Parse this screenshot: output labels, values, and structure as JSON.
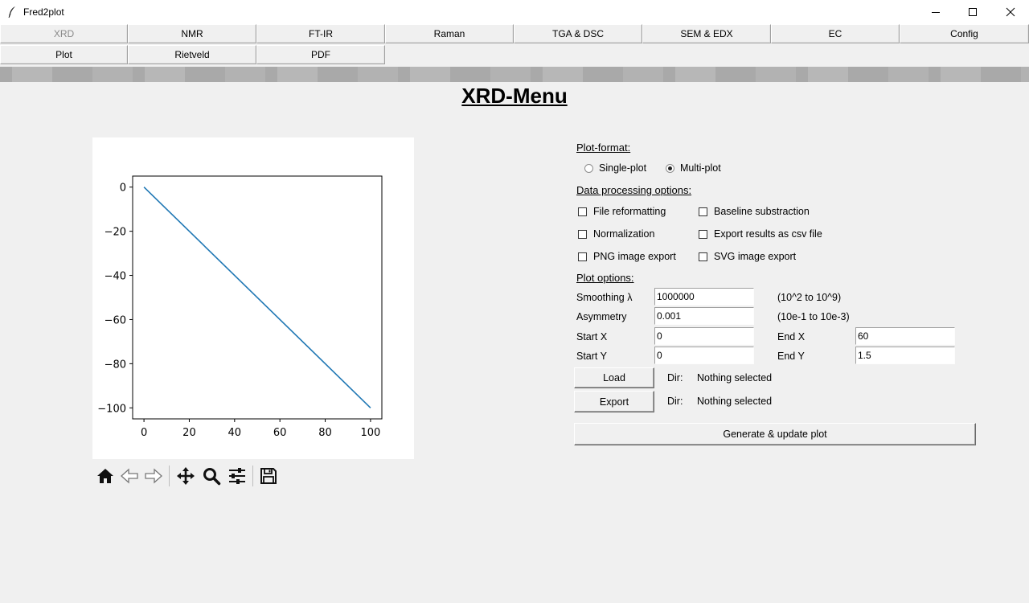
{
  "window": {
    "title": "Fred2plot",
    "minimize_icon": "minimize-icon",
    "maximize_icon": "maximize-icon",
    "close_icon": "close-icon"
  },
  "tabs_row1": [
    "XRD",
    "NMR",
    "FT-IR",
    "Raman",
    "TGA & DSC",
    "SEM & EDX",
    "EC",
    "Config"
  ],
  "tabs_row2": [
    "Plot",
    "Rietveld",
    "PDF"
  ],
  "active_tab": "XRD",
  "page_title": "XRD-Menu",
  "plot_format": {
    "label": "Plot-format:",
    "single": "Single-plot",
    "multi": "Multi-plot",
    "selected": "Multi-plot"
  },
  "data_processing": {
    "label": "Data processing options:",
    "file_reformatting": "File reformatting",
    "baseline": "Baseline substraction",
    "normalization": "Normalization",
    "export_csv": "Export results as csv file",
    "png_export": "PNG image export",
    "svg_export": "SVG image export"
  },
  "plot_options": {
    "label": "Plot options:",
    "smoothing_label": "Smoothing λ",
    "smoothing_value": "1000000",
    "smoothing_hint": "(10^2 to 10^9)",
    "asymmetry_label": "Asymmetry",
    "asymmetry_value": "0.001",
    "asymmetry_hint": "(10e-1 to 10e-3)",
    "start_x_label": "Start X",
    "start_x_value": "0",
    "end_x_label": "End X",
    "end_x_value": "60",
    "start_y_label": "Start Y",
    "start_y_value": "0",
    "end_y_label": "End Y",
    "end_y_value": "1.5"
  },
  "load": {
    "button": "Load",
    "dir_label": "Dir:",
    "dir_value": "Nothing selected"
  },
  "export": {
    "button": "Export",
    "dir_label": "Dir:",
    "dir_value": "Nothing selected"
  },
  "generate_button": "Generate & update plot",
  "plot_toolbar": [
    "home-icon",
    "back-arrow-icon",
    "forward-arrow-icon",
    "pan-icon",
    "zoom-icon",
    "configure-subplots-icon",
    "save-icon"
  ],
  "chart_data": {
    "type": "line",
    "series": [
      {
        "x": [
          0,
          100
        ],
        "y": [
          0,
          -100
        ],
        "color": "#1f77b4"
      }
    ],
    "xlim": [
      -5,
      105
    ],
    "ylim": [
      -105,
      5
    ],
    "xticks": [
      "0",
      "20",
      "40",
      "60",
      "80",
      "100"
    ],
    "yticks": [
      "0",
      "−20",
      "−40",
      "−60",
      "−80",
      "−100"
    ],
    "title": "",
    "xlabel": "",
    "ylabel": "",
    "grid": false
  }
}
